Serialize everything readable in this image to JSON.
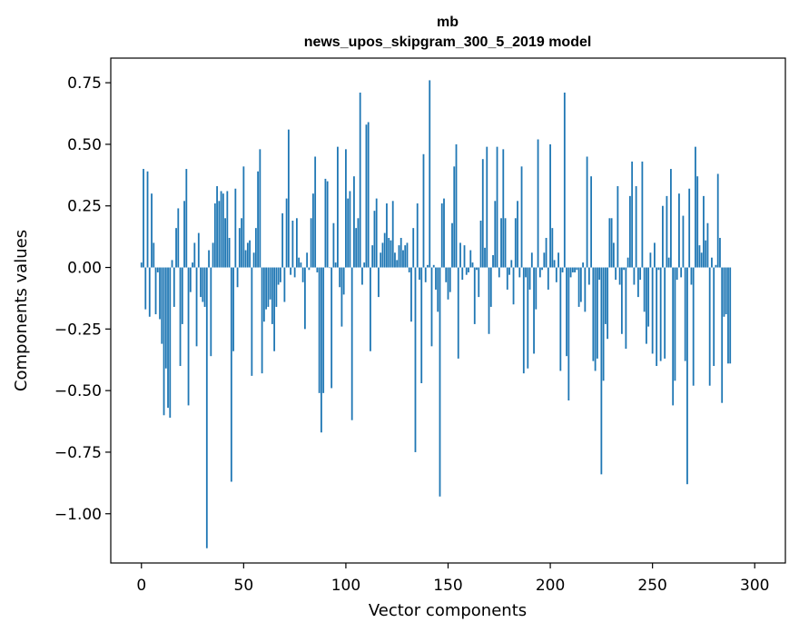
{
  "chart_data": {
    "type": "bar",
    "title": "mb",
    "subtitle": "news_upos_skipgram_300_5_2019 model",
    "xlabel": "Vector components",
    "ylabel": "Components values",
    "xlim": [
      -15,
      315
    ],
    "ylim": [
      -1.2,
      0.85
    ],
    "xticks": [
      0,
      50,
      100,
      150,
      200,
      250,
      300
    ],
    "yticks": [
      0.75,
      0.5,
      0.25,
      0.0,
      -0.25,
      -0.5,
      -0.75,
      -1.0
    ],
    "ytick_labels": [
      "0.75",
      "0.50",
      "0.25",
      "0.00",
      "−0.25",
      "−0.50",
      "−0.75",
      "−1.00"
    ],
    "bar_color": "#1f77b4",
    "values": [
      0.02,
      0.4,
      -0.17,
      0.39,
      -0.2,
      0.3,
      0.1,
      -0.19,
      -0.02,
      -0.21,
      -0.31,
      -0.6,
      -0.41,
      -0.57,
      -0.61,
      0.03,
      -0.16,
      0.16,
      0.24,
      -0.4,
      -0.23,
      0.27,
      0.4,
      -0.56,
      -0.1,
      0.02,
      0.1,
      -0.32,
      0.14,
      -0.12,
      -0.14,
      -0.16,
      -1.14,
      0.07,
      -0.36,
      0.1,
      0.26,
      0.33,
      0.27,
      0.31,
      0.3,
      0.2,
      0.31,
      0.12,
      -0.87,
      -0.34,
      0.32,
      -0.08,
      0.16,
      0.2,
      0.41,
      0.07,
      0.1,
      0.11,
      -0.44,
      0.06,
      0.16,
      0.39,
      0.48,
      -0.43,
      -0.22,
      -0.17,
      -0.16,
      -0.13,
      -0.23,
      -0.34,
      -0.16,
      -0.07,
      -0.06,
      0.22,
      -0.14,
      0.28,
      0.56,
      -0.03,
      0.19,
      -0.04,
      0.2,
      0.04,
      0.02,
      -0.06,
      -0.25,
      0.06,
      -0.01,
      0.2,
      0.3,
      0.45,
      -0.02,
      -0.51,
      -0.67,
      -0.51,
      0.36,
      0.35,
      0.0,
      -0.49,
      0.18,
      0.02,
      0.49,
      -0.08,
      -0.24,
      -0.11,
      0.48,
      0.28,
      0.31,
      -0.62,
      0.37,
      0.16,
      0.2,
      0.71,
      -0.07,
      0.02,
      0.58,
      0.59,
      -0.34,
      0.09,
      0.23,
      0.28,
      -0.12,
      0.06,
      0.1,
      0.14,
      0.26,
      0.12,
      0.11,
      0.27,
      0.06,
      0.03,
      0.09,
      0.12,
      0.07,
      0.09,
      0.1,
      -0.02,
      -0.22,
      0.16,
      -0.75,
      0.26,
      -0.05,
      -0.47,
      0.46,
      -0.06,
      0.01,
      0.76,
      -0.32,
      0.01,
      -0.09,
      -0.18,
      -0.93,
      0.26,
      0.28,
      -0.06,
      -0.13,
      -0.1,
      0.18,
      0.41,
      0.5,
      -0.37,
      0.1,
      -0.05,
      0.09,
      -0.03,
      -0.02,
      0.07,
      0.02,
      -0.23,
      -0.01,
      -0.12,
      0.19,
      0.44,
      0.08,
      0.49,
      -0.27,
      -0.16,
      0.05,
      0.27,
      0.49,
      -0.04,
      0.2,
      0.48,
      0.2,
      -0.09,
      -0.03,
      0.03,
      -0.15,
      0.2,
      0.27,
      -0.04,
      0.41,
      -0.43,
      -0.04,
      -0.41,
      -0.09,
      0.06,
      -0.35,
      -0.17,
      0.52,
      -0.04,
      -0.01,
      0.06,
      0.12,
      -0.09,
      0.5,
      0.16,
      0.03,
      -0.06,
      0.06,
      -0.42,
      -0.02,
      0.71,
      -0.36,
      -0.54,
      -0.04,
      -0.02,
      -0.02,
      -0.01,
      -0.16,
      -0.14,
      0.02,
      -0.18,
      0.45,
      -0.07,
      0.37,
      -0.38,
      -0.42,
      -0.37,
      -0.05,
      -0.84,
      -0.46,
      -0.23,
      -0.29,
      0.2,
      0.2,
      0.1,
      -0.05,
      0.33,
      -0.07,
      -0.27,
      -0.01,
      -0.33,
      0.04,
      0.29,
      0.43,
      -0.07,
      0.33,
      -0.12,
      -0.05,
      0.43,
      -0.18,
      -0.31,
      -0.24,
      0.06,
      -0.35,
      0.1,
      -0.4,
      -0.01,
      -0.38,
      0.25,
      -0.37,
      0.29,
      0.04,
      0.4,
      -0.56,
      -0.46,
      -0.05,
      0.3,
      -0.04,
      0.21,
      -0.38,
      -0.88,
      0.32,
      -0.07,
      -0.48,
      0.49,
      0.37,
      0.09,
      0.06,
      0.29,
      0.11,
      0.18,
      -0.48,
      0.04,
      -0.4,
      0.01,
      0.38,
      0.12,
      -0.55,
      -0.2,
      -0.19,
      -0.39,
      -0.39
    ]
  }
}
